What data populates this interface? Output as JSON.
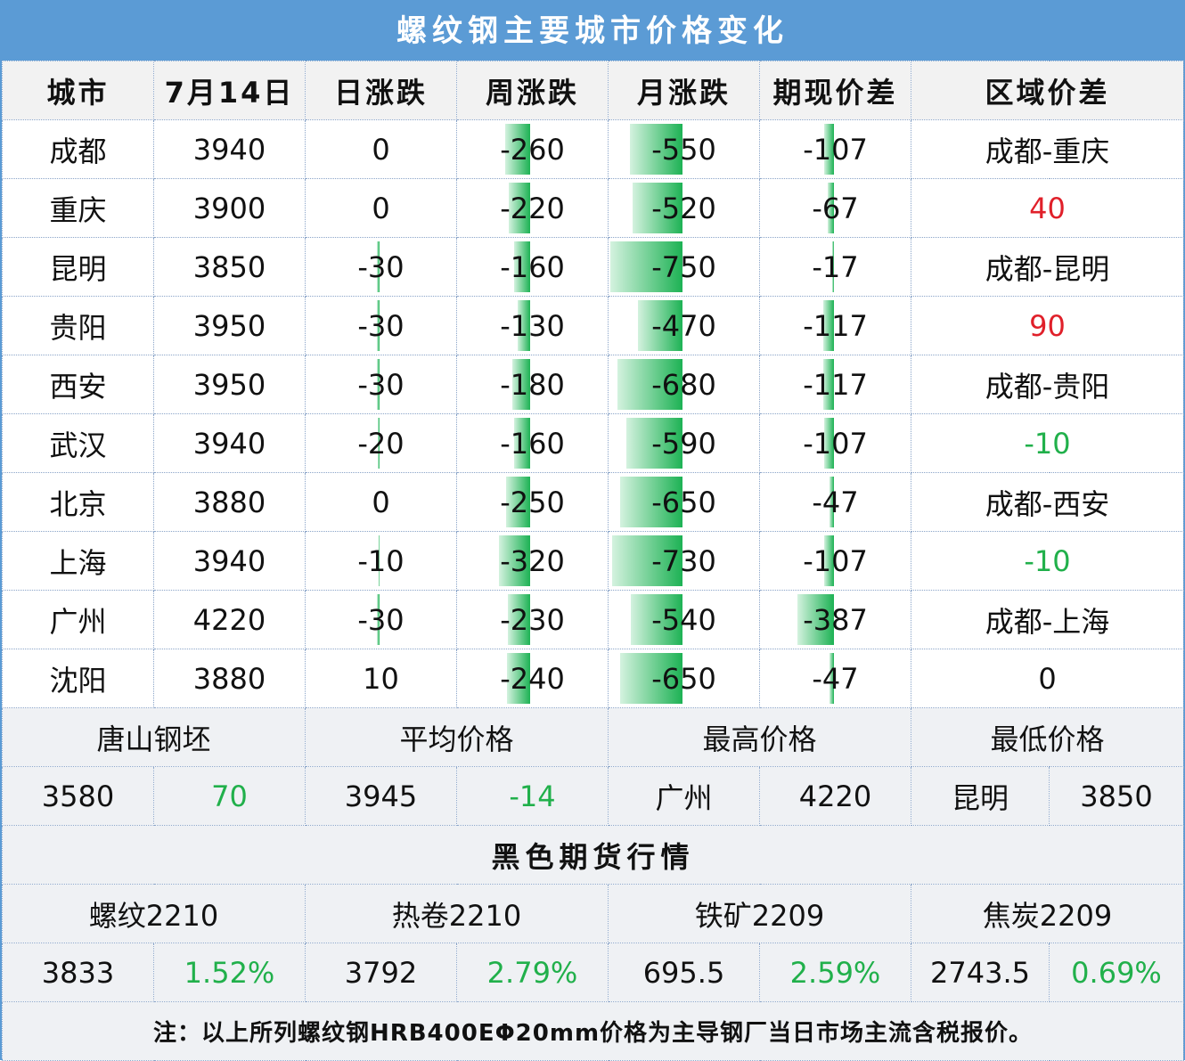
{
  "title": "螺纹钢主要城市价格变化",
  "headers": [
    "城市",
    "7月14日",
    "日涨跌",
    "周涨跌",
    "月涨跌",
    "期现价差",
    "区域价差"
  ],
  "rows": [
    {
      "city": "成都",
      "price": "3940",
      "day": 0,
      "week": -260,
      "month": -550,
      "basis": -107,
      "region": "成都-重庆",
      "region_color": "black"
    },
    {
      "city": "重庆",
      "price": "3900",
      "day": 0,
      "week": -220,
      "month": -520,
      "basis": -67,
      "region": "40",
      "region_color": "red"
    },
    {
      "city": "昆明",
      "price": "3850",
      "day": -30,
      "week": -160,
      "month": -750,
      "basis": -17,
      "region": "成都-昆明",
      "region_color": "black"
    },
    {
      "city": "贵阳",
      "price": "3950",
      "day": -30,
      "week": -130,
      "month": -470,
      "basis": -117,
      "region": "90",
      "region_color": "red"
    },
    {
      "city": "西安",
      "price": "3950",
      "day": -30,
      "week": -180,
      "month": -680,
      "basis": -117,
      "region": "成都-贵阳",
      "region_color": "black"
    },
    {
      "city": "武汉",
      "price": "3940",
      "day": -20,
      "week": -160,
      "month": -590,
      "basis": -107,
      "region": "-10",
      "region_color": "green"
    },
    {
      "city": "北京",
      "price": "3880",
      "day": 0,
      "week": -250,
      "month": -650,
      "basis": -47,
      "region": "成都-西安",
      "region_color": "black"
    },
    {
      "city": "上海",
      "price": "3940",
      "day": -10,
      "week": -320,
      "month": -730,
      "basis": -107,
      "region": "-10",
      "region_color": "green"
    },
    {
      "city": "广州",
      "price": "4220",
      "day": -30,
      "week": -230,
      "month": -540,
      "basis": -387,
      "region": "成都-上海",
      "region_color": "black"
    },
    {
      "city": "沈阳",
      "price": "3880",
      "day": 10,
      "week": -240,
      "month": -650,
      "basis": -47,
      "region": "0",
      "region_color": "black"
    }
  ],
  "summary": {
    "labels": [
      "唐山钢坯",
      "平均价格",
      "最高价格",
      "最低价格"
    ],
    "values": [
      "3580",
      "70",
      "3945",
      "-14",
      "广州",
      "4220",
      "昆明",
      "3850"
    ]
  },
  "futures": {
    "title": "黑色期货行情",
    "names": [
      "螺纹2210",
      "热卷2210",
      "铁矿2209",
      "焦炭2209"
    ],
    "values": [
      "3833",
      "1.52%",
      "3792",
      "2.79%",
      "695.5",
      "2.59%",
      "2743.5",
      "0.69%"
    ]
  },
  "note": "注：以上所列螺纹钢HRB400EΦ20mm价格为主导钢厂当日市场主流含税报价。",
  "colors": {
    "header_blue": "#5b9bd5",
    "bar_green": "#1db254",
    "up_green": "#21b04b",
    "red": "#e0202a"
  }
}
